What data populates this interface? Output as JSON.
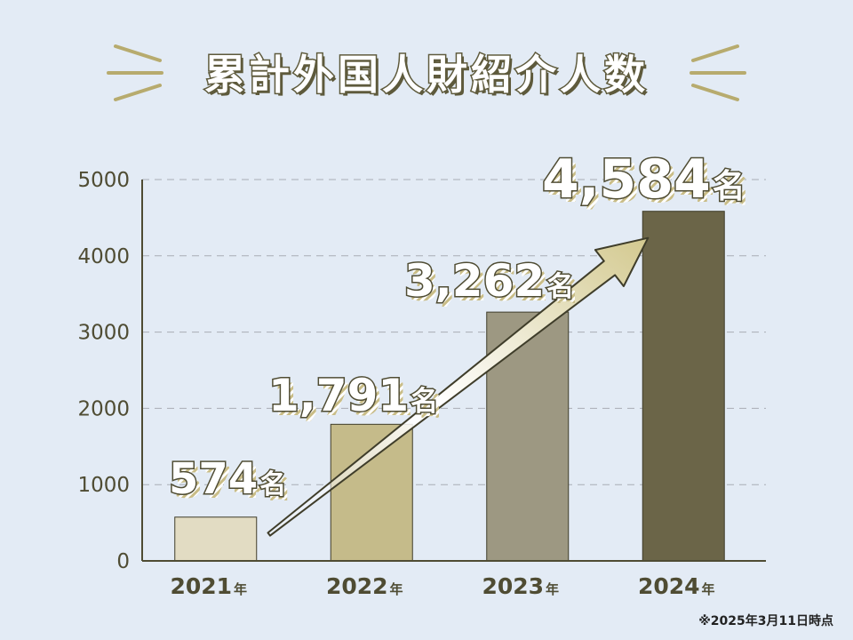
{
  "title": "累計外国人財紹介人数",
  "note": "※2025年3月11日時点",
  "colors": {
    "background": "#e3ebf5",
    "axis": "#4f4c33",
    "gridline": "#a9adb5",
    "arrow": "#d8cf9f"
  },
  "chart_data": {
    "type": "bar",
    "title": "累計外国人財紹介人数",
    "categories": [
      "2021",
      "2022",
      "2023",
      "2024"
    ],
    "category_suffix": "年",
    "values": [
      574,
      1791,
      3262,
      4584
    ],
    "value_labels": [
      "574",
      "1,791",
      "3,262",
      "4,584"
    ],
    "value_unit": "名",
    "bar_colors": [
      "#e2dcc3",
      "#c5bb8a",
      "#9d9882",
      "#6b6548"
    ],
    "ylim": [
      0,
      5000
    ],
    "yticks": [
      0,
      1000,
      2000,
      3000,
      4000,
      5000
    ],
    "ytick_labels": [
      "0",
      "1000",
      "2000",
      "3000",
      "4000",
      "5000"
    ],
    "grid": true,
    "xlabel": "",
    "ylabel": ""
  }
}
